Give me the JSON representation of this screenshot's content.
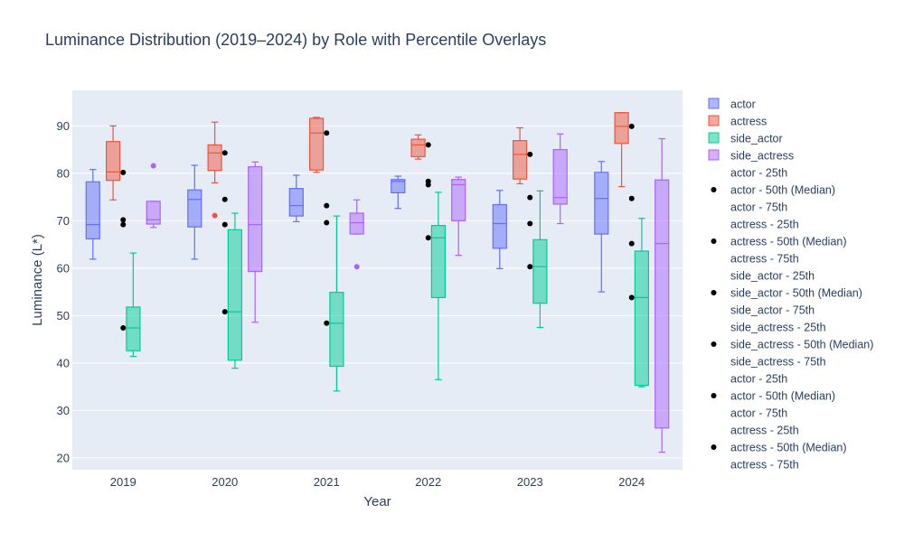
{
  "chart_data": {
    "type": "box",
    "title": "Luminance Distribution (2019–2024) by Role with Percentile Overlays",
    "xlabel": "Year",
    "ylabel": "Luminance (L*)",
    "categories": [
      "2019",
      "2020",
      "2021",
      "2022",
      "2023",
      "2024"
    ],
    "ylim": [
      17.5,
      97.5
    ],
    "yticks": [
      20,
      30,
      40,
      50,
      60,
      70,
      80,
      90
    ],
    "grid": true,
    "legend_position": "right",
    "series": [
      {
        "name": "actor",
        "color": "#636efa",
        "boxes": [
          {
            "min": 61.9,
            "q1": 66.2,
            "median": 69.2,
            "q3": 78.2,
            "max": 80.8,
            "outliers": []
          },
          {
            "min": 61.9,
            "q1": 68.7,
            "median": 74.5,
            "q3": 76.5,
            "max": 81.7,
            "outliers": []
          },
          {
            "min": 69.8,
            "q1": 71.0,
            "median": 73.2,
            "q3": 76.8,
            "max": 79.6,
            "outliers": []
          },
          {
            "min": 72.6,
            "q1": 75.9,
            "median": 78.3,
            "q3": 78.7,
            "max": 79.4,
            "outliers": []
          },
          {
            "min": 59.9,
            "q1": 64.2,
            "median": 69.4,
            "q3": 73.4,
            "max": 76.4,
            "outliers": []
          },
          {
            "min": 55.0,
            "q1": 67.2,
            "median": 74.7,
            "q3": 80.2,
            "max": 82.5,
            "outliers": []
          }
        ]
      },
      {
        "name": "actress",
        "color": "#ef553b",
        "boxes": [
          {
            "min": 74.4,
            "q1": 78.5,
            "median": 80.3,
            "q3": 86.7,
            "max": 90.0,
            "outliers": []
          },
          {
            "min": 78.0,
            "q1": 80.6,
            "median": 84.3,
            "q3": 86.0,
            "max": 90.8,
            "outliers": [
              71.1
            ]
          },
          {
            "min": 80.2,
            "q1": 80.7,
            "median": 88.5,
            "q3": 91.6,
            "max": 91.8,
            "outliers": []
          },
          {
            "min": 83.0,
            "q1": 83.5,
            "median": 86.0,
            "q3": 87.2,
            "max": 88.1,
            "outliers": []
          },
          {
            "min": 77.8,
            "q1": 78.8,
            "median": 84.0,
            "q3": 86.9,
            "max": 89.6,
            "outliers": []
          },
          {
            "min": 77.2,
            "q1": 86.3,
            "median": 89.9,
            "q3": 92.8,
            "max": 92.8,
            "outliers": []
          }
        ]
      },
      {
        "name": "side_actor",
        "color": "#00cc96",
        "boxes": [
          {
            "min": 41.4,
            "q1": 42.6,
            "median": 47.4,
            "q3": 51.8,
            "max": 63.2,
            "outliers": []
          },
          {
            "min": 38.9,
            "q1": 40.6,
            "median": 50.8,
            "q3": 68.1,
            "max": 71.6,
            "outliers": []
          },
          {
            "min": 34.1,
            "q1": 39.3,
            "median": 48.4,
            "q3": 54.9,
            "max": 71.0,
            "outliers": []
          },
          {
            "min": 36.5,
            "q1": 53.8,
            "median": 66.4,
            "q3": 69.0,
            "max": 76.0,
            "outliers": []
          },
          {
            "min": 47.5,
            "q1": 52.6,
            "median": 60.3,
            "q3": 66.0,
            "max": 76.3,
            "outliers": []
          },
          {
            "min": 35.0,
            "q1": 35.3,
            "median": 53.8,
            "q3": 63.6,
            "max": 70.5,
            "outliers": []
          }
        ]
      },
      {
        "name": "side_actress",
        "color": "#ab63fa",
        "boxes": [
          {
            "min": 68.6,
            "q1": 69.3,
            "median": 70.2,
            "q3": 74.1,
            "max": 74.1,
            "outliers": [
              81.6
            ]
          },
          {
            "min": 48.6,
            "q1": 59.3,
            "median": 69.2,
            "q3": 81.4,
            "max": 82.4,
            "outliers": []
          },
          {
            "min": 67.2,
            "q1": 67.2,
            "median": 69.6,
            "q3": 71.6,
            "max": 74.4,
            "outliers": [
              60.3
            ]
          },
          {
            "min": 62.7,
            "q1": 70.0,
            "median": 77.6,
            "q3": 78.7,
            "max": 79.2,
            "outliers": []
          },
          {
            "min": 69.4,
            "q1": 73.5,
            "median": 74.9,
            "q3": 85.0,
            "max": 88.3,
            "outliers": []
          },
          {
            "min": 21.2,
            "q1": 26.3,
            "median": 65.2,
            "q3": 78.6,
            "max": 87.3,
            "outliers": []
          }
        ]
      }
    ],
    "median_markers": [
      {
        "category": "2019",
        "values": [
          80.2,
          70.2,
          69.2,
          47.4
        ]
      },
      {
        "category": "2020",
        "values": [
          84.3,
          74.5,
          69.2,
          50.8
        ]
      },
      {
        "category": "2021",
        "values": [
          88.5,
          73.2,
          69.6,
          48.4
        ]
      },
      {
        "category": "2022",
        "values": [
          86.0,
          78.3,
          77.6,
          66.4
        ]
      },
      {
        "category": "2023",
        "values": [
          84.0,
          74.9,
          69.4,
          60.3
        ]
      },
      {
        "category": "2024",
        "values": [
          89.9,
          74.7,
          65.2,
          53.8
        ]
      }
    ],
    "legend": [
      {
        "label": "actor",
        "kind": "box",
        "color": "#636efa"
      },
      {
        "label": "actress",
        "kind": "box",
        "color": "#ef553b"
      },
      {
        "label": "side_actor",
        "kind": "box",
        "color": "#00cc96"
      },
      {
        "label": "side_actress",
        "kind": "box",
        "color": "#ab63fa"
      },
      {
        "label": "actor - 25th",
        "kind": "none"
      },
      {
        "label": "actor - 50th (Median)",
        "kind": "dot"
      },
      {
        "label": "actor - 75th",
        "kind": "none"
      },
      {
        "label": "actress - 25th",
        "kind": "none"
      },
      {
        "label": "actress - 50th (Median)",
        "kind": "dot"
      },
      {
        "label": "actress - 75th",
        "kind": "none"
      },
      {
        "label": "side_actor - 25th",
        "kind": "none"
      },
      {
        "label": "side_actor - 50th (Median)",
        "kind": "dot"
      },
      {
        "label": "side_actor - 75th",
        "kind": "none"
      },
      {
        "label": "side_actress - 25th",
        "kind": "none"
      },
      {
        "label": "side_actress - 50th (Median)",
        "kind": "dot"
      },
      {
        "label": "side_actress - 75th",
        "kind": "none"
      },
      {
        "label": "actor - 25th",
        "kind": "none"
      },
      {
        "label": "actor - 50th (Median)",
        "kind": "dot"
      },
      {
        "label": "actor - 75th",
        "kind": "none"
      },
      {
        "label": "actress - 25th",
        "kind": "none"
      },
      {
        "label": "actress - 50th (Median)",
        "kind": "dot"
      },
      {
        "label": "actress - 75th",
        "kind": "none"
      }
    ],
    "colors": {
      "plot_background": "#e5ecf6",
      "gridline": "#ffffff",
      "marker": "#000000",
      "text": "#2a3f5f"
    }
  }
}
